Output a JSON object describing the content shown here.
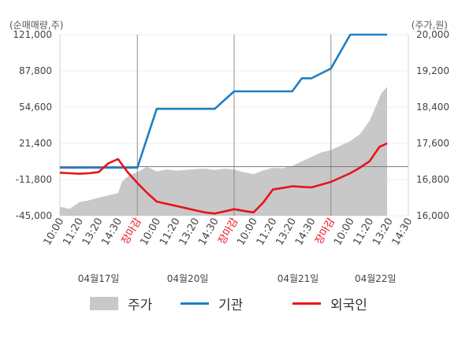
{
  "chart_data": {
    "type": "line",
    "left_axis_title": "(순매매량,주)",
    "right_axis_title": "(주가,원)",
    "left_ticks": [
      "121,000",
      "87,800",
      "54,600",
      "21,400",
      "-11,800",
      "-45,000"
    ],
    "left_range": [
      -45000,
      121000
    ],
    "right_ticks": [
      "20,000",
      "19,200",
      "18,400",
      "17,600",
      "16,800",
      "16,000"
    ],
    "right_range": [
      16000,
      20000
    ],
    "x_ticks": [
      {
        "label": "10:00",
        "red": false
      },
      {
        "label": "11:20",
        "red": false
      },
      {
        "label": "13:20",
        "red": false
      },
      {
        "label": "14:30",
        "red": false
      },
      {
        "label": "장마감",
        "red": true
      },
      {
        "label": "10:00",
        "red": false
      },
      {
        "label": "11:20",
        "red": false
      },
      {
        "label": "13:20",
        "red": false
      },
      {
        "label": "14:30",
        "red": false
      },
      {
        "label": "장마감",
        "red": true
      },
      {
        "label": "10:00",
        "red": false
      },
      {
        "label": "11:20",
        "red": false
      },
      {
        "label": "13:20",
        "red": false
      },
      {
        "label": "14:30",
        "red": false
      },
      {
        "label": "장마감",
        "red": true
      },
      {
        "label": "10:00",
        "red": false
      },
      {
        "label": "11:20",
        "red": false
      },
      {
        "label": "13:20",
        "red": false
      },
      {
        "label": "14:30",
        "red": false
      }
    ],
    "dates": [
      "04월17일",
      "04월20일",
      "04월21일",
      "04월22일"
    ],
    "series": [
      {
        "name": "주가",
        "type": "area",
        "axis": "right",
        "color": "#c8c8c8",
        "x": [
          0,
          0.5,
          1,
          1.5,
          2,
          2.5,
          3,
          3.2,
          3.6,
          4,
          4.5,
          5,
          5.5,
          6,
          6.5,
          7,
          7.5,
          8,
          8.5,
          9,
          9.5,
          10,
          10.5,
          11,
          11.5,
          12,
          12.5,
          13,
          13.5,
          14,
          14.5,
          15,
          15.5,
          16,
          16.3,
          16.6,
          16.9
        ],
        "values": [
          16200,
          16150,
          16300,
          16340,
          16400,
          16450,
          16500,
          16750,
          16900,
          16960,
          17080,
          16980,
          17020,
          17000,
          17010,
          17030,
          17040,
          17010,
          17040,
          17020,
          16960,
          16920,
          17000,
          17060,
          17050,
          17100,
          17200,
          17300,
          17400,
          17450,
          17550,
          17650,
          17800,
          18100,
          18400,
          18700,
          18850
        ]
      },
      {
        "name": "기관",
        "type": "line",
        "axis": "left",
        "color": "#1f7ec2",
        "x": [
          0,
          1,
          2,
          2.5,
          3,
          4,
          5,
          6,
          7,
          8,
          9,
          10,
          10.5,
          11,
          12,
          12.5,
          13,
          14,
          15,
          16,
          16.9
        ],
        "values": [
          -1000,
          -1000,
          -1000,
          -1000,
          -1000,
          -1000,
          53000,
          53000,
          53000,
          53000,
          69000,
          69000,
          69000,
          69000,
          69000,
          81000,
          81000,
          90000,
          121000,
          121000,
          121000
        ]
      },
      {
        "name": "외국인",
        "type": "line",
        "axis": "left",
        "color": "#e8121a",
        "x": [
          0,
          0.5,
          1,
          1.5,
          2,
          2.5,
          3,
          3.5,
          4,
          4.5,
          5,
          5.5,
          6,
          6.5,
          7,
          7.5,
          8,
          8.5,
          9,
          9.5,
          10,
          10.5,
          11,
          11.5,
          12,
          12.5,
          13,
          13.5,
          14,
          14.5,
          15,
          15.5,
          16,
          16.5,
          16.9
        ],
        "values": [
          -5500,
          -6000,
          -6500,
          -6000,
          -5000,
          3000,
          7000,
          -5000,
          -15000,
          -24000,
          -32000,
          -34000,
          -36000,
          -38000,
          -40000,
          -42000,
          -43000,
          -41000,
          -39000,
          -40500,
          -42000,
          -33000,
          -21000,
          -19500,
          -18000,
          -18500,
          -19000,
          -16500,
          -14000,
          -10000,
          -6000,
          -1000,
          5000,
          18000,
          21400
        ]
      }
    ],
    "baseline": 0
  },
  "legend": {
    "price_label": "주가",
    "institution_label": "기관",
    "foreign_label": "외국인"
  }
}
